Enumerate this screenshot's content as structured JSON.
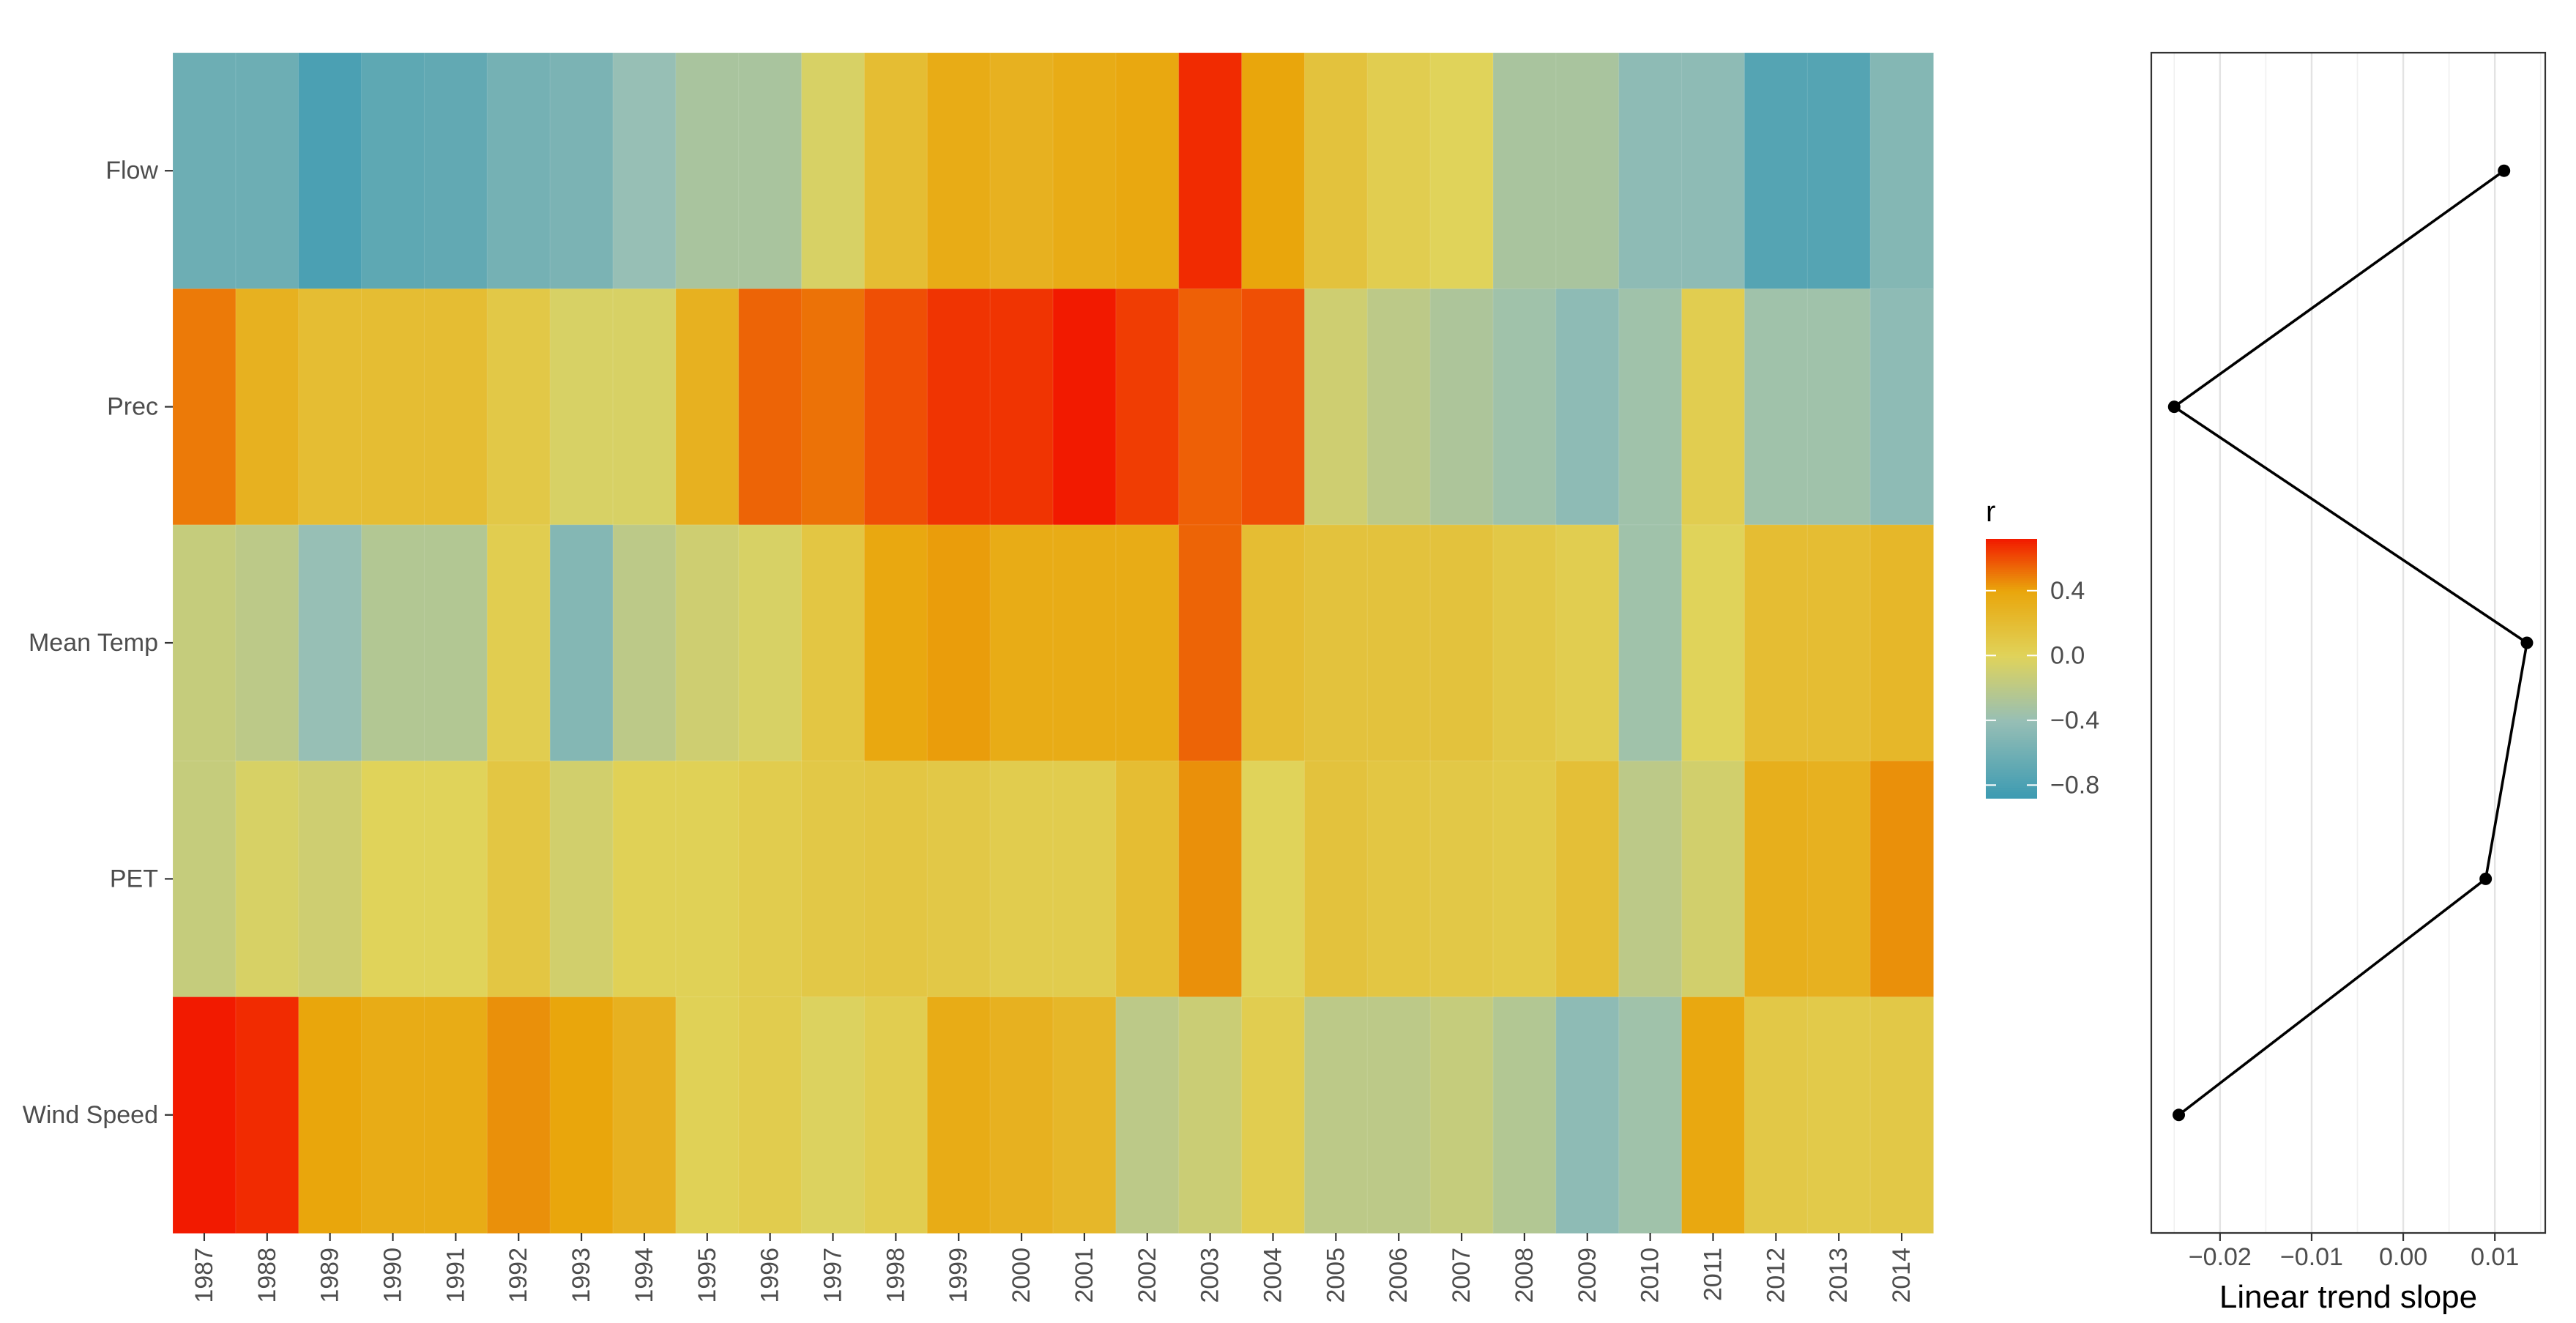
{
  "chart_data": [
    {
      "type": "heatmap",
      "title": "",
      "xlabel": "",
      "ylabel": "",
      "x": [
        "1987",
        "1988",
        "1989",
        "1990",
        "1991",
        "1992",
        "1993",
        "1994",
        "1995",
        "1996",
        "1997",
        "1998",
        "1999",
        "2000",
        "2001",
        "2002",
        "2003",
        "2004",
        "2005",
        "2006",
        "2007",
        "2008",
        "2009",
        "2010",
        "2011",
        "2012",
        "2013",
        "2014"
      ],
      "y": [
        "Flow",
        "Prec",
        "Mean Temp",
        "PET",
        "Wind Speed"
      ],
      "values": [
        [
          -0.62,
          -0.62,
          -0.8,
          -0.7,
          -0.68,
          -0.58,
          -0.55,
          -0.4,
          -0.3,
          -0.3,
          -0.05,
          0.2,
          0.35,
          0.3,
          0.35,
          0.38,
          0.68,
          0.4,
          0.15,
          0.05,
          0.0,
          -0.3,
          -0.3,
          -0.45,
          -0.45,
          -0.75,
          -0.75,
          -0.5
        ],
        [
          0.5,
          0.3,
          0.2,
          0.2,
          0.2,
          0.1,
          -0.05,
          -0.05,
          0.3,
          0.55,
          0.52,
          0.6,
          0.66,
          0.66,
          0.78,
          0.64,
          0.56,
          0.6,
          -0.1,
          -0.2,
          -0.28,
          -0.35,
          -0.45,
          -0.35,
          0.05,
          -0.35,
          -0.35,
          -0.45
        ],
        [
          -0.15,
          -0.2,
          -0.4,
          -0.25,
          -0.25,
          0.05,
          -0.5,
          -0.2,
          -0.1,
          -0.05,
          0.12,
          0.38,
          0.42,
          0.35,
          0.35,
          0.35,
          0.55,
          0.2,
          0.15,
          0.15,
          0.15,
          0.1,
          0.05,
          -0.35,
          0.0,
          0.2,
          0.2,
          0.25
        ],
        [
          -0.15,
          -0.05,
          -0.1,
          0.0,
          0.0,
          0.12,
          -0.08,
          0.02,
          0.02,
          0.06,
          0.1,
          0.12,
          0.1,
          0.06,
          0.06,
          0.2,
          0.45,
          0.0,
          0.15,
          0.12,
          0.1,
          0.08,
          0.18,
          -0.2,
          -0.08,
          0.32,
          0.3,
          0.45
        ],
        [
          0.75,
          0.68,
          0.4,
          0.35,
          0.35,
          0.45,
          0.4,
          0.3,
          0.02,
          0.06,
          -0.02,
          0.05,
          0.35,
          0.3,
          0.25,
          -0.2,
          -0.12,
          0.05,
          -0.2,
          -0.2,
          -0.15,
          -0.25,
          -0.45,
          -0.35,
          0.38,
          0.1,
          0.08,
          0.1
        ]
      ],
      "legend": {
        "title": "r",
        "ticks": [
          0.4,
          0.0,
          -0.4,
          -0.8
        ],
        "tick_labels": [
          "0.4",
          "0.0",
          "−0.4",
          "−0.8"
        ],
        "range": [
          -0.88,
          0.72
        ],
        "position": "right"
      },
      "colors": {
        "low": "#3c9ab2",
        "mid_low": "#97bfb5",
        "mid": "#e0d35a",
        "mid_high": "#e9a60c",
        "high": "#f21a00"
      }
    },
    {
      "type": "line",
      "title": "",
      "xlabel": "Linear trend slope",
      "ylabel": "",
      "categories": [
        "Flow",
        "Prec",
        "Mean Temp",
        "PET",
        "Wind Speed"
      ],
      "values": [
        0.011,
        -0.025,
        0.0135,
        0.009,
        -0.0245
      ],
      "xlim": [
        -0.0275,
        0.0155
      ],
      "x_ticks": [
        -0.02,
        -0.01,
        0.0,
        0.01
      ],
      "x_tick_labels": [
        "−0.02",
        "−0.01",
        "0.00",
        "0.01"
      ],
      "grid": true
    }
  ]
}
